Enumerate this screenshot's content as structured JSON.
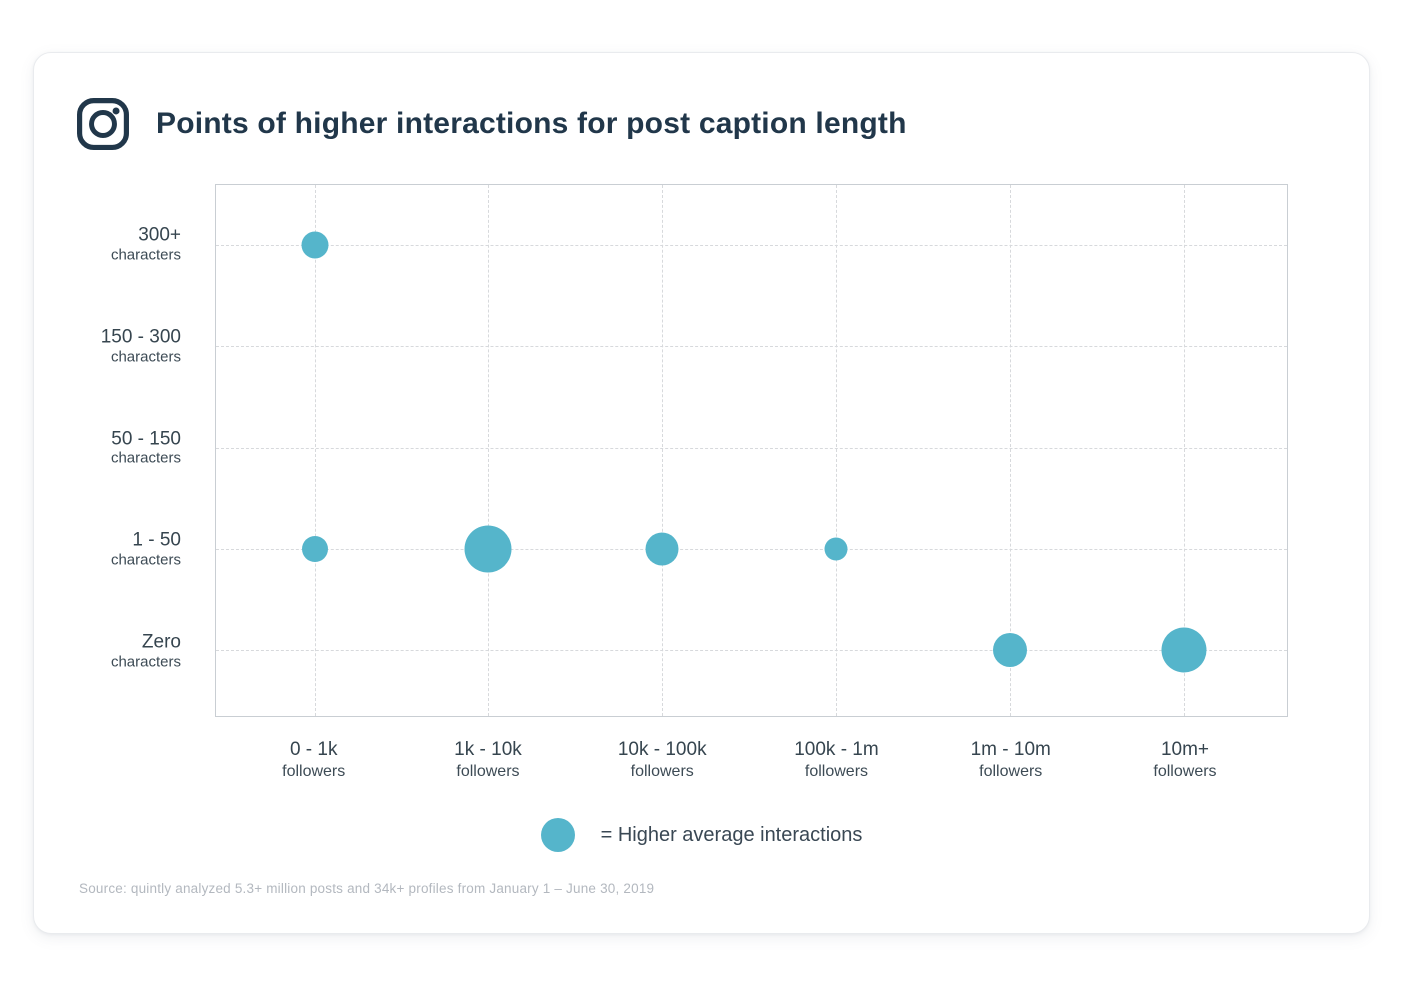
{
  "header": {
    "title": "Points of higher interactions for post caption length",
    "icon": "instagram-icon",
    "icon_color": "#21374a"
  },
  "chart_data": {
    "type": "scatter",
    "title": "Points of higher interactions for post caption length",
    "x_categories": [
      {
        "label": "0 - 1k",
        "sublabel": "followers"
      },
      {
        "label": "1k - 10k",
        "sublabel": "followers"
      },
      {
        "label": "10k - 100k",
        "sublabel": "followers"
      },
      {
        "label": "100k - 1m",
        "sublabel": "followers"
      },
      {
        "label": "1m - 10m",
        "sublabel": "followers"
      },
      {
        "label": "10m+",
        "sublabel": "followers"
      }
    ],
    "y_categories": [
      {
        "label": "300+",
        "sublabel": "characters"
      },
      {
        "label": "150 - 300",
        "sublabel": "characters"
      },
      {
        "label": "50 - 150",
        "sublabel": "characters"
      },
      {
        "label": "1 - 50",
        "sublabel": "characters"
      },
      {
        "label": "Zero",
        "sublabel": "characters"
      }
    ],
    "points": [
      {
        "x": "0 - 1k",
        "y": "300+",
        "size": 27
      },
      {
        "x": "0 - 1k",
        "y": "1 - 50",
        "size": 26
      },
      {
        "x": "1k - 10k",
        "y": "1 - 50",
        "size": 47
      },
      {
        "x": "10k - 100k",
        "y": "1 - 50",
        "size": 33
      },
      {
        "x": "100k - 1m",
        "y": "1 - 50",
        "size": 23
      },
      {
        "x": "1m - 10m",
        "y": "Zero",
        "size": 34
      },
      {
        "x": "10m+",
        "y": "Zero",
        "size": 45
      }
    ],
    "bubble_color": "#55b5cb",
    "grid": "dashed",
    "legend_position": "bottom-center"
  },
  "legend": {
    "marker": "bubble-swatch",
    "text": "= Higher average interactions"
  },
  "source": {
    "text": "Source: quintly analyzed 5.3+ million posts and 34k+ profiles from January 1 – June 30, 2019"
  }
}
